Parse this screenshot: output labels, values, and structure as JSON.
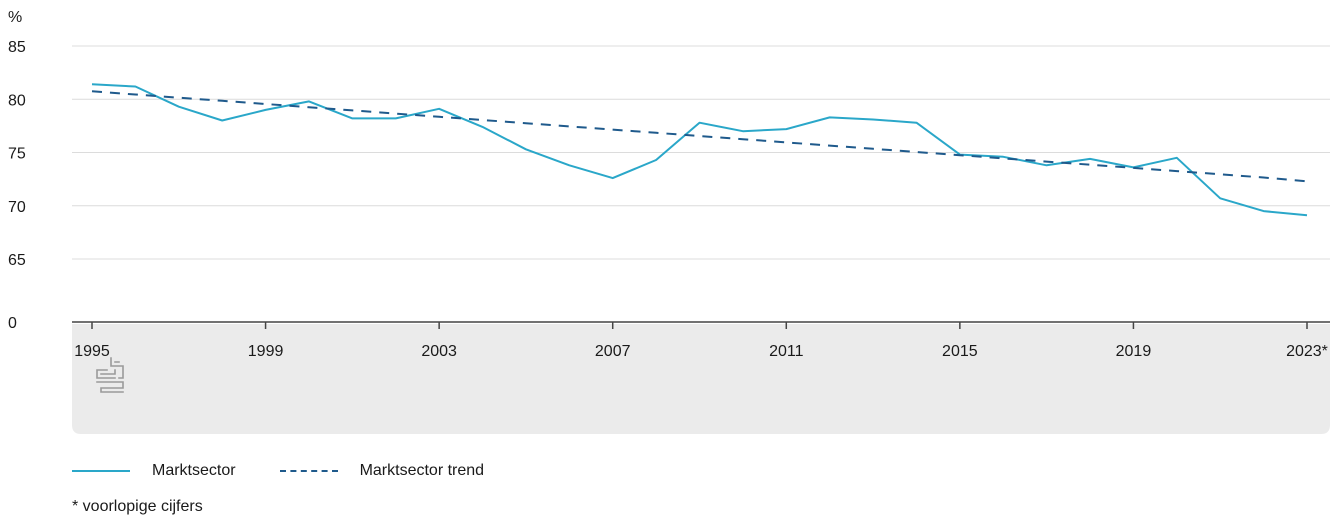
{
  "chart_data": {
    "type": "line",
    "y_unit_label": "%",
    "x_tick_labels": [
      "1995",
      "1999",
      "2003",
      "2007",
      "2011",
      "2015",
      "2019",
      "2023*"
    ],
    "y_tick_labels": [
      "0",
      "65",
      "70",
      "75",
      "80",
      "85"
    ],
    "y_axis_break": {
      "from": 0,
      "to": 65
    },
    "ylim": [
      65,
      85
    ],
    "xlim": [
      1995,
      2023
    ],
    "grid": true,
    "legend_position": "bottom-left",
    "x": [
      1995,
      1996,
      1997,
      1998,
      1999,
      2000,
      2001,
      2002,
      2003,
      2004,
      2005,
      2006,
      2007,
      2008,
      2009,
      2010,
      2011,
      2012,
      2013,
      2014,
      2015,
      2016,
      2017,
      2018,
      2019,
      2020,
      2021,
      2022,
      2023
    ],
    "series": [
      {
        "name": "Marktsector",
        "style": "solid",
        "color": "#2aa7c9",
        "values": [
          81.4,
          81.2,
          79.3,
          78.0,
          79.0,
          79.8,
          78.2,
          78.2,
          79.1,
          77.4,
          75.3,
          73.8,
          72.6,
          74.3,
          77.8,
          77.0,
          77.2,
          78.3,
          78.1,
          77.8,
          74.8,
          74.6,
          73.8,
          74.4,
          73.6,
          74.5,
          70.7,
          69.5,
          69.1
        ]
      },
      {
        "name": "Marktsector trend",
        "style": "dashed",
        "color": "#1f5a8c",
        "values": [
          80.75,
          80.45,
          80.15,
          79.85,
          79.55,
          79.25,
          78.95,
          78.65,
          78.35,
          78.05,
          77.75,
          77.45,
          77.15,
          76.85,
          76.55,
          76.25,
          75.95,
          75.65,
          75.35,
          75.05,
          74.75,
          74.45,
          74.15,
          73.85,
          73.55,
          73.25,
          72.95,
          72.65,
          72.3
        ]
      }
    ],
    "footnote": "* voorlopige cijfers"
  },
  "colors": {
    "grid": "#dcdcdc",
    "axis": "#444444",
    "logo_panel": "#ebebeb",
    "logo": "#9a9a9a"
  },
  "icons": {
    "logo": "cbs-logo-icon"
  }
}
